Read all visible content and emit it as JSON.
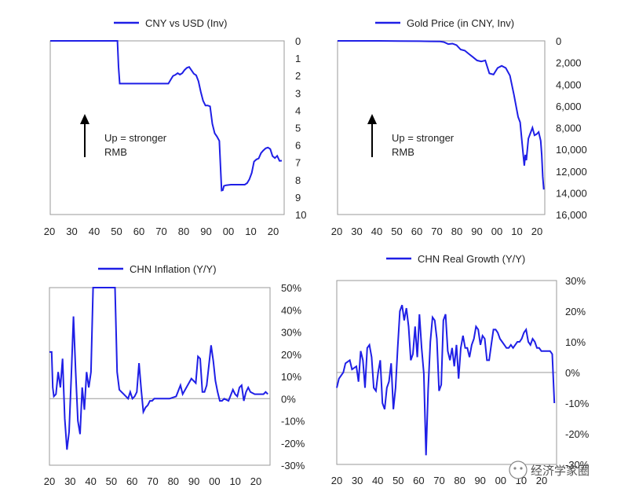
{
  "charts": [
    {
      "id": "cny",
      "legend": "CNY vs USD (Inv)",
      "annotation": [
        "Up = stronger",
        "RMB"
      ],
      "series_color": "#1f1fe6",
      "axis_side": "right",
      "y_inverted": true,
      "y_range": [
        0,
        10
      ],
      "y_tick_values": [
        0,
        1,
        2,
        3,
        4,
        5,
        6,
        7,
        8,
        9,
        10
      ],
      "y_tick_labels": [
        "0",
        "1",
        "2",
        "3",
        "4",
        "5",
        "6",
        "7",
        "8",
        "9",
        "10"
      ],
      "x_tick_labels": [
        "20",
        "30",
        "40",
        "50",
        "60",
        "70",
        "80",
        "90",
        "00",
        "10",
        "20"
      ]
    },
    {
      "id": "gold",
      "legend": "Gold Price (in CNY, Inv)",
      "annotation": [
        "Up = stronger",
        "RMB"
      ],
      "series_color": "#1f1fe6",
      "axis_side": "right",
      "y_inverted": true,
      "y_range": [
        0,
        16000
      ],
      "y_tick_values": [
        0,
        2000,
        4000,
        6000,
        8000,
        10000,
        12000,
        14000,
        16000
      ],
      "y_tick_labels": [
        "0",
        "2,000",
        "4,000",
        "6,000",
        "8,000",
        "10,000",
        "12,000",
        "14,000",
        "16,000"
      ],
      "x_tick_labels": [
        "20",
        "30",
        "40",
        "50",
        "60",
        "70",
        "80",
        "90",
        "00",
        "10",
        "20"
      ]
    },
    {
      "id": "infl",
      "legend": "CHN Inflation (Y/Y)",
      "series_color": "#1f1fe6",
      "axis_side": "right",
      "y_inverted": false,
      "y_range": [
        -30,
        50
      ],
      "y_tick_values": [
        50,
        40,
        30,
        20,
        10,
        0,
        -10,
        -20,
        -30
      ],
      "y_tick_labels": [
        "50%",
        "40%",
        "30%",
        "20%",
        "10%",
        "0%",
        "-10%",
        "-20%",
        "-30%"
      ],
      "x_tick_labels": [
        "20",
        "30",
        "40",
        "50",
        "60",
        "70",
        "80",
        "90",
        "00",
        "10",
        "20"
      ]
    },
    {
      "id": "growth",
      "legend": "CHN Real Growth (Y/Y)",
      "series_color": "#1f1fe6",
      "axis_side": "right",
      "y_inverted": false,
      "y_range": [
        -30,
        30
      ],
      "y_tick_values": [
        30,
        20,
        10,
        0,
        -10,
        -20,
        -30
      ],
      "y_tick_labels": [
        "30%",
        "20%",
        "10%",
        "0%",
        "-10%",
        "-20%",
        "-30%"
      ],
      "x_tick_labels": [
        "20",
        "30",
        "40",
        "50",
        "60",
        "70",
        "80",
        "90",
        "00",
        "10",
        "20"
      ]
    }
  ],
  "chart_data": [
    {
      "type": "line",
      "legend": "CNY vs USD (Inv)",
      "xlim": [
        1920,
        2021
      ],
      "ylim": [
        0,
        10
      ],
      "y_inverted": true,
      "series": [
        {
          "name": "CNY vs USD (Inv)",
          "x": [
            1920,
            1949,
            1949.5,
            1950,
            1955,
            1960,
            1965,
            1970,
            1971,
            1972,
            1973,
            1974,
            1975,
            1976,
            1977,
            1978,
            1979,
            1980,
            1981,
            1982,
            1983,
            1984,
            1985,
            1986,
            1987,
            1988,
            1989,
            1990,
            1991,
            1992,
            1993,
            1994,
            1994.5,
            1995,
            1996,
            1998,
            2000,
            2002,
            2004,
            2005,
            2006,
            2007,
            2008,
            2009,
            2010,
            2011,
            2012,
            2013,
            2014,
            2015,
            2016,
            2017,
            2018,
            2019,
            2020
          ],
          "y": [
            0,
            0,
            1.5,
            2.46,
            2.46,
            2.46,
            2.46,
            2.46,
            2.46,
            2.24,
            2.02,
            1.96,
            1.86,
            1.94,
            1.86,
            1.68,
            1.55,
            1.5,
            1.7,
            1.89,
            1.98,
            2.32,
            2.94,
            3.45,
            3.72,
            3.72,
            3.77,
            4.78,
            5.32,
            5.51,
            5.76,
            8.62,
            8.6,
            8.35,
            8.31,
            8.28,
            8.28,
            8.28,
            8.28,
            8.19,
            7.97,
            7.6,
            6.95,
            6.83,
            6.77,
            6.46,
            6.31,
            6.19,
            6.14,
            6.23,
            6.64,
            6.75,
            6.62,
            6.91,
            6.9
          ]
        }
      ]
    },
    {
      "type": "line",
      "legend": "Gold Price (in CNY, Inv)",
      "xlim": [
        1920,
        2021
      ],
      "ylim": [
        0,
        16000
      ],
      "y_inverted": true,
      "series": [
        {
          "name": "Gold Price (in CNY, Inv)",
          "x": [
            1920,
            1930,
            1940,
            1950,
            1960,
            1965,
            1970,
            1972,
            1974,
            1976,
            1978,
            1980,
            1982,
            1984,
            1986,
            1988,
            1990,
            1992,
            1994,
            1996,
            1998,
            2000,
            2002,
            2004,
            2006,
            2008,
            2009,
            2010,
            2011,
            2011.5,
            2012,
            2013,
            2014,
            2015,
            2016,
            2017,
            2018,
            2019,
            2019.5,
            2020,
            2020.5
          ],
          "y": [
            0,
            0,
            0,
            20,
            30,
            40,
            60,
            120,
            300,
            250,
            400,
            800,
            900,
            1200,
            1500,
            1800,
            1900,
            1800,
            3000,
            3100,
            2500,
            2300,
            2500,
            3200,
            5000,
            7000,
            7500,
            9500,
            11500,
            10500,
            11000,
            9000,
            8500,
            8000,
            8700,
            8600,
            8400,
            9200,
            10500,
            12500,
            13700
          ]
        }
      ]
    },
    {
      "type": "line",
      "legend": "CHN Inflation (Y/Y)",
      "xlim": [
        1920,
        2021
      ],
      "ylim": [
        -30,
        50
      ],
      "series": [
        {
          "name": "CHN Inflation (Y/Y)",
          "x": [
            1920,
            1921,
            1921.5,
            1922,
            1923,
            1924,
            1925,
            1926,
            1927,
            1928,
            1929,
            1930,
            1931,
            1932,
            1933,
            1934,
            1935,
            1936,
            1937,
            1938,
            1939,
            1940,
            1949,
            1950,
            1951,
            1952,
            1953,
            1954,
            1955,
            1956,
            1957,
            1958,
            1959,
            1960,
            1961,
            1962,
            1963,
            1964,
            1965,
            1966,
            1967,
            1968,
            1969,
            1970,
            1975,
            1978,
            1980,
            1981,
            1985,
            1987,
            1988,
            1989,
            1990,
            1991,
            1992,
            1993,
            1994,
            1995,
            1996,
            1997,
            1998,
            1999,
            2000,
            2002,
            2004,
            2005,
            2006,
            2007,
            2008,
            2009,
            2010,
            2011,
            2012,
            2014,
            2016,
            2018,
            2019,
            2020
          ],
          "y": [
            21,
            21,
            5,
            1,
            2,
            12,
            5,
            18,
            -9,
            -23,
            -15,
            10,
            37,
            12,
            -10,
            -16,
            5,
            -5,
            12,
            5,
            12,
            52,
            52,
            52,
            12,
            4,
            3,
            2,
            1,
            0,
            3,
            0,
            1,
            3,
            16,
            4,
            -6,
            -4,
            -3,
            -1,
            -1,
            0,
            0,
            0,
            0,
            1,
            6,
            2,
            9,
            7,
            19,
            18,
            3,
            3,
            6,
            15,
            24,
            17,
            8,
            3,
            -1,
            -1,
            0,
            -1,
            4,
            2,
            1,
            5,
            6,
            -1,
            3,
            5,
            3,
            2,
            2,
            2,
            3,
            2
          ]
        }
      ]
    },
    {
      "type": "line",
      "legend": "CHN Real Growth (Y/Y)",
      "xlim": [
        1920,
        2021
      ],
      "ylim": [
        -30,
        30
      ],
      "series": [
        {
          "name": "CHN Real Growth (Y/Y)",
          "x": [
            1920,
            1921,
            1923,
            1924,
            1926,
            1927,
            1929,
            1930,
            1931,
            1932,
            1933,
            1934,
            1935,
            1936,
            1937,
            1938,
            1939,
            1940,
            1941,
            1942,
            1943,
            1944,
            1945,
            1946,
            1947,
            1948,
            1949,
            1950,
            1951,
            1952,
            1953,
            1954,
            1955,
            1956,
            1957,
            1958,
            1959,
            1960,
            1961,
            1962,
            1963,
            1964,
            1965,
            1966,
            1967,
            1968,
            1969,
            1970,
            1971,
            1972,
            1973,
            1974,
            1975,
            1976,
            1977,
            1978,
            1979,
            1980,
            1981,
            1982,
            1983,
            1984,
            1985,
            1986,
            1987,
            1988,
            1989,
            1990,
            1991,
            1992,
            1993,
            1994,
            1995,
            1996,
            1997,
            1998,
            1999,
            2000,
            2001,
            2002,
            2003,
            2004,
            2005,
            2006,
            2007,
            2008,
            2009,
            2010,
            2011,
            2012,
            2013,
            2014,
            2015,
            2016,
            2017,
            2018,
            2019,
            2020
          ],
          "y": [
            -5,
            -2,
            0,
            3,
            4,
            1,
            2,
            -3,
            7,
            4,
            -5,
            8,
            9,
            5,
            -5,
            -6,
            0,
            4,
            -10,
            -12,
            -5,
            -3,
            3,
            -12,
            -5,
            8,
            20,
            22,
            17,
            21,
            15,
            4,
            6,
            15,
            5,
            19,
            8,
            -0.3,
            -27,
            -5.6,
            10,
            18,
            17,
            11,
            -6,
            -4,
            17,
            19,
            7,
            4,
            8,
            2,
            9,
            -2,
            8,
            12,
            8,
            8,
            5,
            9,
            11,
            15,
            14,
            9,
            12,
            11,
            4,
            4,
            9,
            14,
            14,
            13,
            11,
            10,
            9,
            8,
            8,
            9,
            8,
            9,
            10,
            10,
            11,
            13,
            14,
            10,
            9,
            11,
            10,
            8,
            8,
            7,
            7,
            7,
            7,
            7,
            6,
            -10
          ]
        }
      ]
    }
  ],
  "watermark": "经济学家圈"
}
